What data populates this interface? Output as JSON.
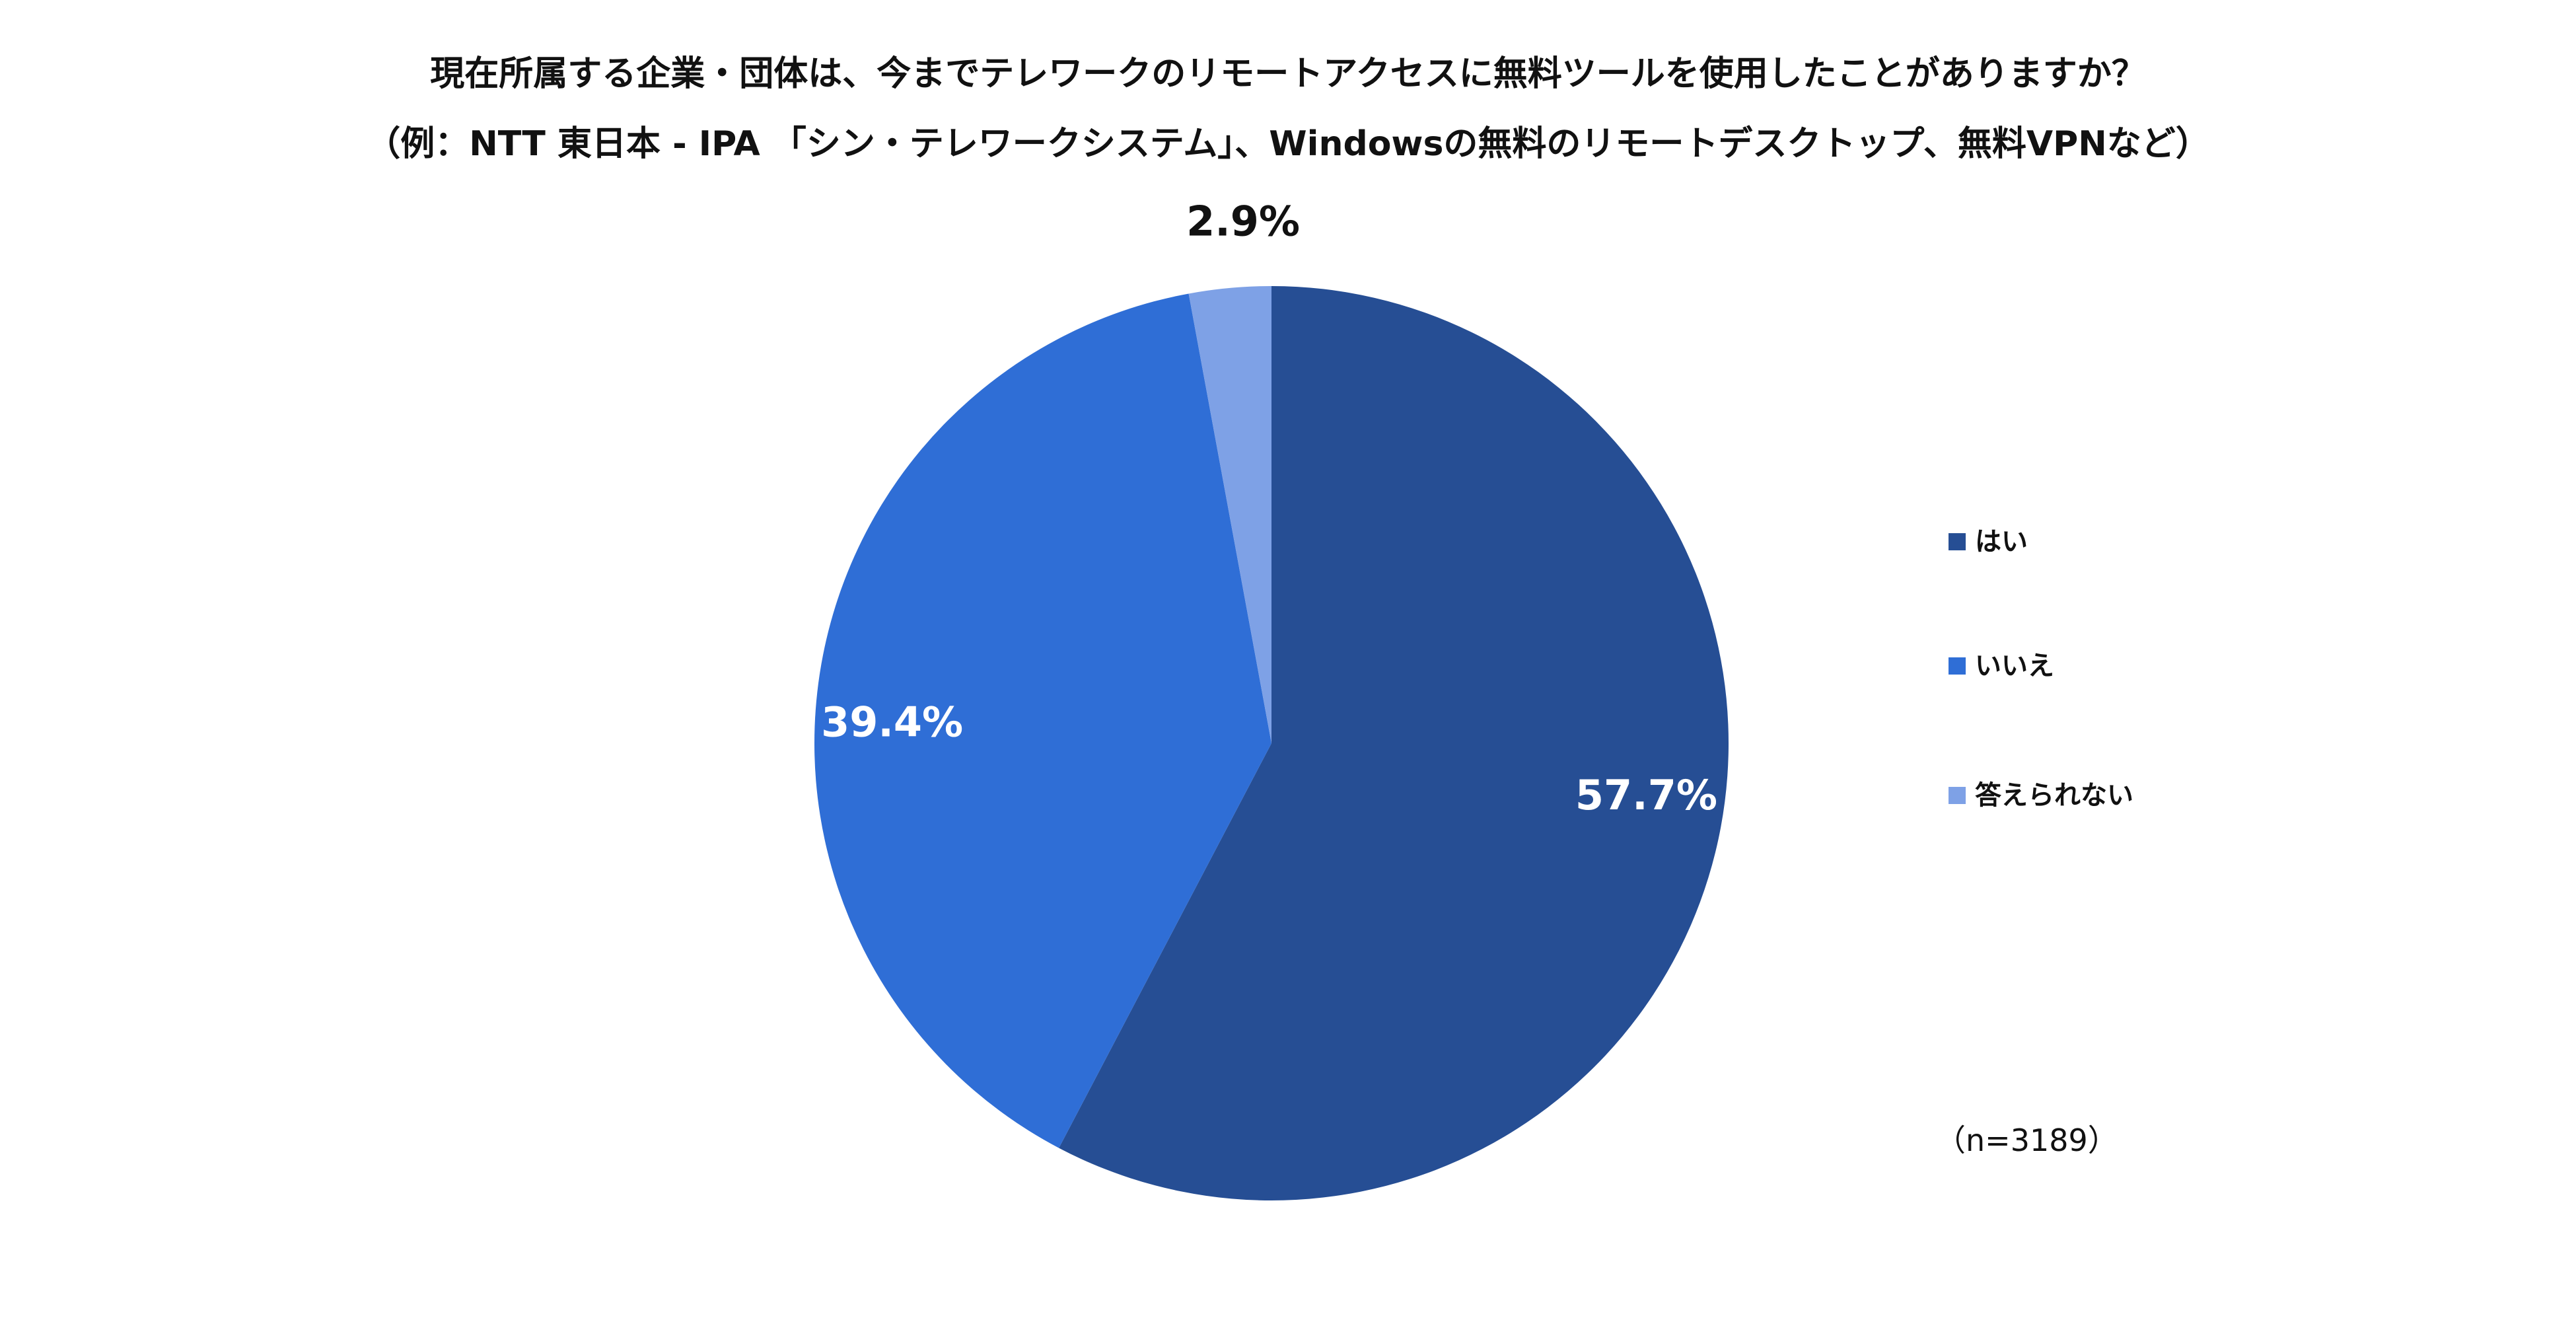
{
  "chart_data": {
    "type": "pie",
    "title_lines": [
      "現在所属する企業・団体は、今までテレワークのリモートアクセスに無料ツールを使用したことがありますか？",
      "（例：NTT 東日本 - IPA 「シン・テレワークシステム」、Windowsの無料のリモートデスクトップ、無料VPNなど）"
    ],
    "slices": [
      {
        "label": "はい",
        "value": 57.7,
        "data_label": "57.7%",
        "color": "#264E94"
      },
      {
        "label": "いいえ",
        "value": 39.4,
        "data_label": "39.4%",
        "color": "#2F6ED6"
      },
      {
        "label": "答えられない",
        "value": 2.9,
        "data_label": "2.9%",
        "color": "#7EA1E6"
      }
    ],
    "legend_position": "right",
    "note": "（n=3189）"
  }
}
